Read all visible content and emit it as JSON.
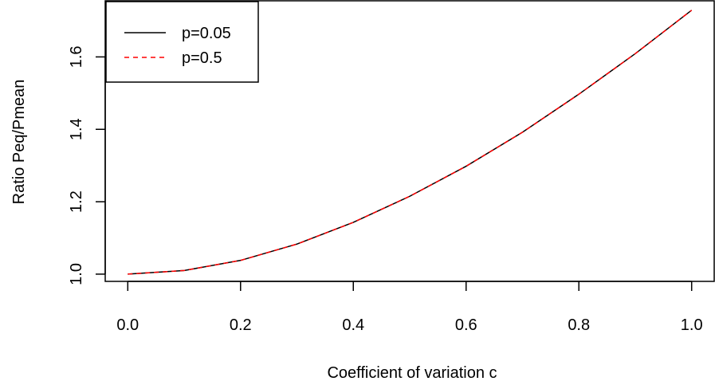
{
  "chart_data": {
    "type": "line",
    "title": "",
    "xlabel": "Coefficient of variation c",
    "ylabel": "Ratio Peq/Pmean",
    "xlim": [
      -0.04,
      1.04
    ],
    "ylim": [
      0.98,
      1.755
    ],
    "xticks": [
      0.0,
      0.2,
      0.4,
      0.6,
      0.8,
      1.0
    ],
    "xtick_labels": [
      "0.0",
      "0.2",
      "0.4",
      "0.6",
      "0.8",
      "1.0"
    ],
    "yticks": [
      1.0,
      1.2,
      1.4,
      1.6
    ],
    "ytick_labels": [
      "1.0",
      "1.2",
      "1.4",
      "1.6"
    ],
    "grid": false,
    "legend_position": "top-left",
    "x": [
      0.0,
      0.1,
      0.2,
      0.3,
      0.4,
      0.5,
      0.6,
      0.7,
      0.8,
      0.9,
      1.0
    ],
    "series": [
      {
        "name": "p=0.05",
        "color": "#000000",
        "dash": "solid",
        "values": [
          1.0,
          1.01,
          1.038,
          1.083,
          1.143,
          1.215,
          1.298,
          1.392,
          1.497,
          1.609,
          1.729
        ]
      },
      {
        "name": "p=0.5",
        "color": "#ff0000",
        "dash": "dashed",
        "values": [
          1.0,
          1.01,
          1.038,
          1.083,
          1.143,
          1.215,
          1.298,
          1.392,
          1.497,
          1.609,
          1.729
        ]
      }
    ]
  }
}
